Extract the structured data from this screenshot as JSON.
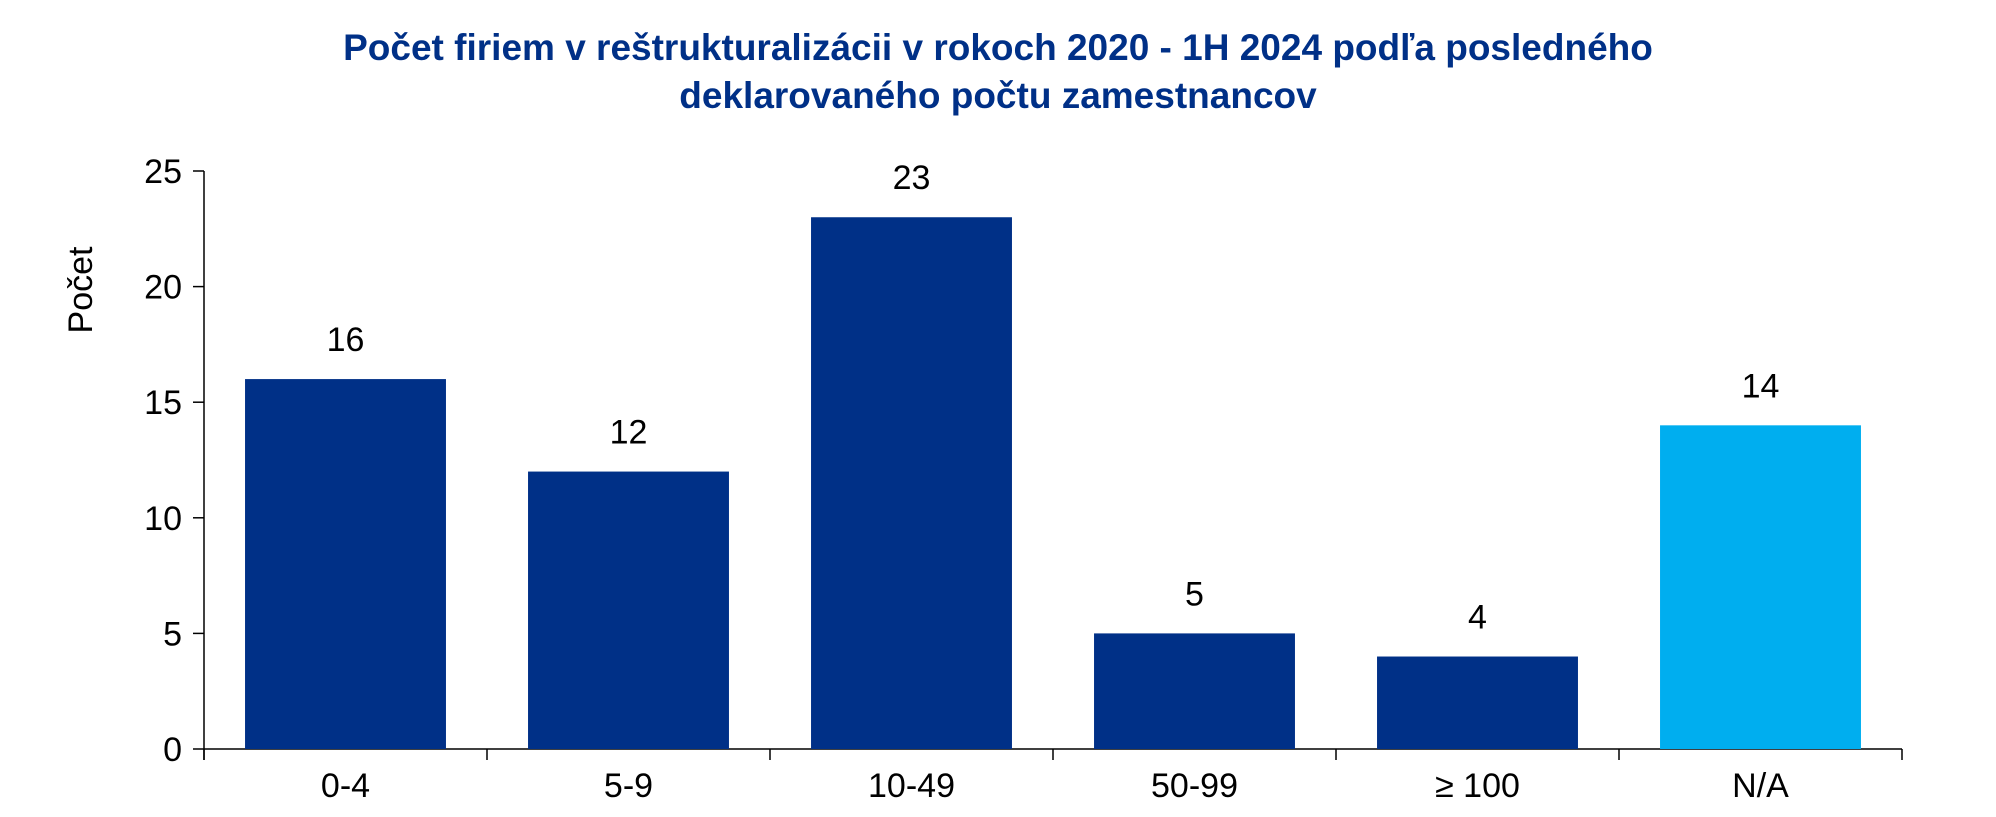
{
  "chart_data": {
    "type": "bar",
    "title_lines": [
      "Počet firiem v reštrukturalizácii v rokoch 2020 - 1H 2024 podľa posledného",
      "deklarovaného počtu zamestnancov"
    ],
    "xlabel": "",
    "ylabel": "Počet",
    "ylim": [
      0,
      25
    ],
    "yticks": [
      0,
      5,
      10,
      15,
      20,
      25
    ],
    "categories": [
      "0-4",
      "5-9",
      "10-49",
      "50-99",
      "≥ 100",
      "N/A"
    ],
    "values": [
      16,
      12,
      23,
      5,
      4,
      14
    ],
    "data_labels": [
      "16",
      "12",
      "23",
      "5",
      "4",
      "14"
    ],
    "bar_colors": [
      "#003087",
      "#003087",
      "#003087",
      "#003087",
      "#003087",
      "#00AEEF"
    ],
    "title_color": "#003087",
    "grid": false,
    "legend": "none"
  }
}
